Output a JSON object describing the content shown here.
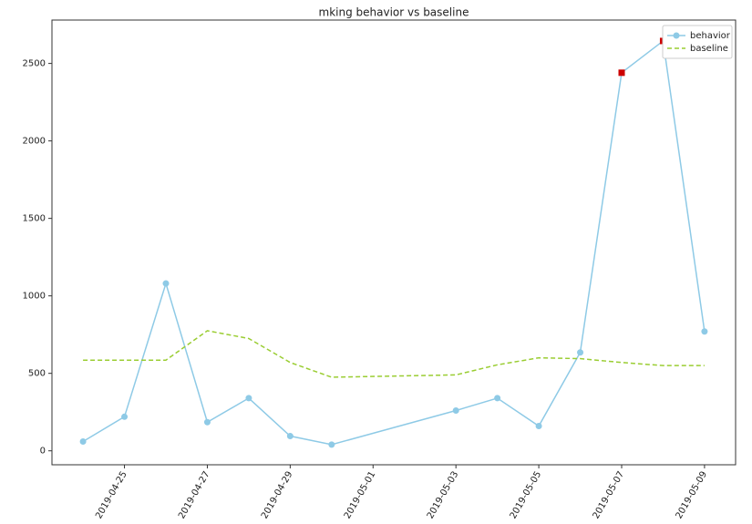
{
  "chart_data": {
    "type": "line",
    "title": "mking behavior vs baseline",
    "x": [
      "2019-04-24",
      "2019-04-25",
      "2019-04-26",
      "2019-04-27",
      "2019-04-28",
      "2019-04-29",
      "2019-04-30",
      "2019-05-03",
      "2019-05-04",
      "2019-05-05",
      "2019-05-06",
      "2019-05-07",
      "2019-05-08",
      "2019-05-09"
    ],
    "series": [
      {
        "name": "behavior",
        "color": "#8ecae6",
        "marker": "circle",
        "dashed": false,
        "values": [
          60,
          220,
          1080,
          185,
          340,
          95,
          40,
          260,
          340,
          160,
          635,
          2440,
          2645,
          770
        ],
        "highlight": {
          "indices": [
            11,
            12
          ],
          "color": "#cc0000",
          "marker": "square"
        }
      },
      {
        "name": "baseline",
        "color": "#9acd32",
        "marker": "none",
        "dashed": true,
        "values": [
          585,
          585,
          585,
          775,
          725,
          570,
          475,
          490,
          555,
          600,
          595,
          570,
          550,
          550
        ]
      }
    ],
    "xlim": [
      "2019-04-23T06:00",
      "2019-05-09T18:00"
    ],
    "xticks": [
      "2019-04-25",
      "2019-04-27",
      "2019-04-29",
      "2019-05-01",
      "2019-05-03",
      "2019-05-05",
      "2019-05-07",
      "2019-05-09"
    ],
    "ylim": [
      -90,
      2780
    ],
    "yticks": [
      0,
      500,
      1000,
      1500,
      2000,
      2500
    ],
    "grid": false,
    "legend": "upper right"
  }
}
